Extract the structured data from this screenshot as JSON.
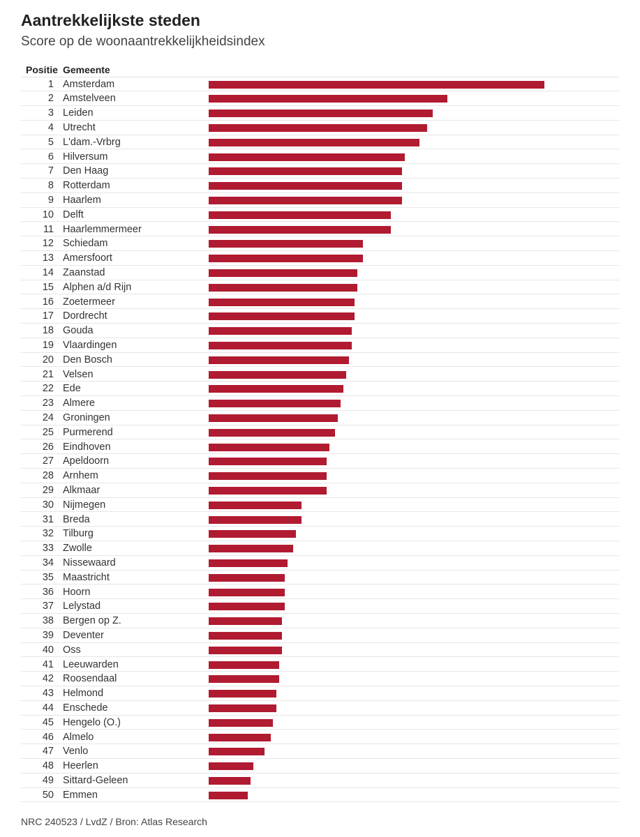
{
  "header": {
    "title": "Aantrekkelijkste steden",
    "subtitle": "Score op de woonaantrekkelijkheidsindex"
  },
  "columns": {
    "position": "Positie",
    "municipality": "Gemeente"
  },
  "footer": {
    "source": "NRC 240523 / LvdZ / Bron: Atlas Research"
  },
  "colors": {
    "bar": "#b01b31"
  },
  "chart_data": {
    "type": "bar",
    "orientation": "horizontal",
    "title": "Aantrekkelijkste steden",
    "subtitle": "Score op de woonaantrekkelijkheidsindex",
    "xlabel": "",
    "ylabel": "",
    "grid": false,
    "legend": "none",
    "xlim": [
      0,
      1
    ],
    "note": "Axis has no printed scale; values are relative bar lengths (Amsterdam = 1.00).",
    "rows": [
      {
        "position": "1",
        "name": "Amsterdam",
        "value": 1.0
      },
      {
        "position": "2",
        "name": "Amstelveen",
        "value": 0.71
      },
      {
        "position": "3",
        "name": "Leiden",
        "value": 0.667
      },
      {
        "position": "4",
        "name": "Utrecht",
        "value": 0.65
      },
      {
        "position": "5",
        "name": "L'dam.-Vrbrg",
        "value": 0.627
      },
      {
        "position": "6",
        "name": "Hilversum",
        "value": 0.584
      },
      {
        "position": "7",
        "name": "Den Haag",
        "value": 0.576
      },
      {
        "position": "8",
        "name": "Rotterdam",
        "value": 0.576
      },
      {
        "position": "9",
        "name": "Haarlem",
        "value": 0.576
      },
      {
        "position": "10",
        "name": "Delft",
        "value": 0.542
      },
      {
        "position": "11",
        "name": "Haarlemmermeer",
        "value": 0.542
      },
      {
        "position": "12",
        "name": "Schiedam",
        "value": 0.459
      },
      {
        "position": "13",
        "name": "Amersfoort",
        "value": 0.459
      },
      {
        "position": "14",
        "name": "Zaanstad",
        "value": 0.442
      },
      {
        "position": "15",
        "name": "Alphen a/d Rijn",
        "value": 0.442
      },
      {
        "position": "16",
        "name": "Zoetermeer",
        "value": 0.434
      },
      {
        "position": "17",
        "name": "Dordrecht",
        "value": 0.434
      },
      {
        "position": "18",
        "name": "Gouda",
        "value": 0.426
      },
      {
        "position": "19",
        "name": "Vlaardingen",
        "value": 0.426
      },
      {
        "position": "20",
        "name": "Den Bosch",
        "value": 0.417
      },
      {
        "position": "21",
        "name": "Velsen",
        "value": 0.409
      },
      {
        "position": "22",
        "name": "Ede",
        "value": 0.401
      },
      {
        "position": "23",
        "name": "Almere",
        "value": 0.392
      },
      {
        "position": "24",
        "name": "Groningen",
        "value": 0.384
      },
      {
        "position": "25",
        "name": "Purmerend",
        "value": 0.376
      },
      {
        "position": "26",
        "name": "Eindhoven",
        "value": 0.359
      },
      {
        "position": "27",
        "name": "Apeldoorn",
        "value": 0.351
      },
      {
        "position": "28",
        "name": "Arnhem",
        "value": 0.351
      },
      {
        "position": "29",
        "name": "Alkmaar",
        "value": 0.351
      },
      {
        "position": "30",
        "name": "Nijmegen",
        "value": 0.276
      },
      {
        "position": "31",
        "name": "Breda",
        "value": 0.276
      },
      {
        "position": "32",
        "name": "Tilburg",
        "value": 0.26
      },
      {
        "position": "33",
        "name": "Zwolle",
        "value": 0.251
      },
      {
        "position": "34",
        "name": "Nissewaard",
        "value": 0.234
      },
      {
        "position": "35",
        "name": "Maastricht",
        "value": 0.226
      },
      {
        "position": "36",
        "name": "Hoorn",
        "value": 0.226
      },
      {
        "position": "37",
        "name": "Lelystad",
        "value": 0.226
      },
      {
        "position": "38",
        "name": "Bergen op Z.",
        "value": 0.218
      },
      {
        "position": "39",
        "name": "Deventer",
        "value": 0.218
      },
      {
        "position": "40",
        "name": "Oss",
        "value": 0.218
      },
      {
        "position": "41",
        "name": "Leeuwarden",
        "value": 0.209
      },
      {
        "position": "42",
        "name": "Roosendaal",
        "value": 0.209
      },
      {
        "position": "43",
        "name": "Helmond",
        "value": 0.201
      },
      {
        "position": "44",
        "name": "Enschede",
        "value": 0.201
      },
      {
        "position": "45",
        "name": "Hengelo (O.)",
        "value": 0.192
      },
      {
        "position": "46",
        "name": "Almelo",
        "value": 0.184
      },
      {
        "position": "47",
        "name": "Venlo",
        "value": 0.167
      },
      {
        "position": "48",
        "name": "Heerlen",
        "value": 0.134
      },
      {
        "position": "49",
        "name": "Sittard-Geleen",
        "value": 0.125
      },
      {
        "position": "50",
        "name": "Emmen",
        "value": 0.117
      }
    ]
  }
}
